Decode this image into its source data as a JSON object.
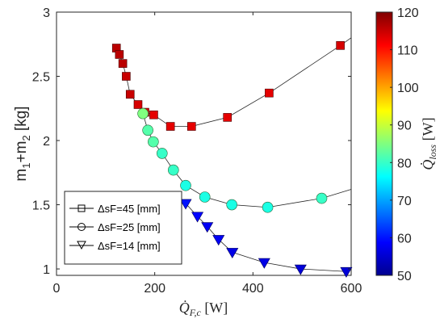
{
  "chart_data": {
    "type": "scatter",
    "xlabel": "Q̇F,c [W]",
    "ylabel": "m1+m2 [kg]",
    "colorbar_label": "Q̇loss [W]",
    "xlim": [
      0,
      600
    ],
    "ylim": [
      0.95,
      3
    ],
    "xticks": [
      "0",
      "200",
      "400",
      "600"
    ],
    "yticks": [
      "1",
      "1.5",
      "2",
      "2.5",
      "3"
    ],
    "colorbar": {
      "range": [
        50,
        120
      ],
      "ticks": [
        "50",
        "60",
        "70",
        "80",
        "90",
        "100",
        "110",
        "120"
      ],
      "colormap": "jet"
    },
    "grid": false,
    "legend_position": "bottom-left",
    "series": [
      {
        "name": "ΔsF=45 [mm]",
        "marker": "square",
        "x": [
          122,
          128,
          135,
          142,
          150,
          166,
          180,
          198,
          232,
          275,
          348,
          433,
          578
        ],
        "y": [
          2.72,
          2.67,
          2.6,
          2.5,
          2.36,
          2.28,
          2.22,
          2.2,
          2.11,
          2.11,
          2.18,
          2.37,
          2.74
        ],
        "color_values": [
          116,
          116,
          116,
          115,
          115,
          114,
          114,
          113,
          113,
          113,
          113,
          113,
          114
        ],
        "line_extension": [
          600,
          2.8
        ]
      },
      {
        "name": "ΔsF=25 [mm]",
        "marker": "circle",
        "x": [
          176,
          186,
          197,
          215,
          238,
          263,
          302,
          357,
          430,
          540
        ],
        "y": [
          2.21,
          2.08,
          1.99,
          1.9,
          1.77,
          1.65,
          1.56,
          1.5,
          1.48,
          1.55
        ],
        "color_values": [
          85,
          82,
          82,
          80,
          80,
          78,
          78,
          78,
          78,
          80
        ],
        "line_extension": [
          600,
          1.62
        ]
      },
      {
        "name": "ΔsF=14 [mm]",
        "marker": "triangle-down",
        "x": [
          263,
          287,
          307,
          330,
          358,
          423,
          497,
          590
        ],
        "y": [
          1.51,
          1.41,
          1.33,
          1.23,
          1.13,
          1.05,
          1.0,
          0.98
        ],
        "color_values": [
          60,
          59,
          58,
          58,
          57,
          57,
          56,
          56
        ]
      }
    ]
  }
}
